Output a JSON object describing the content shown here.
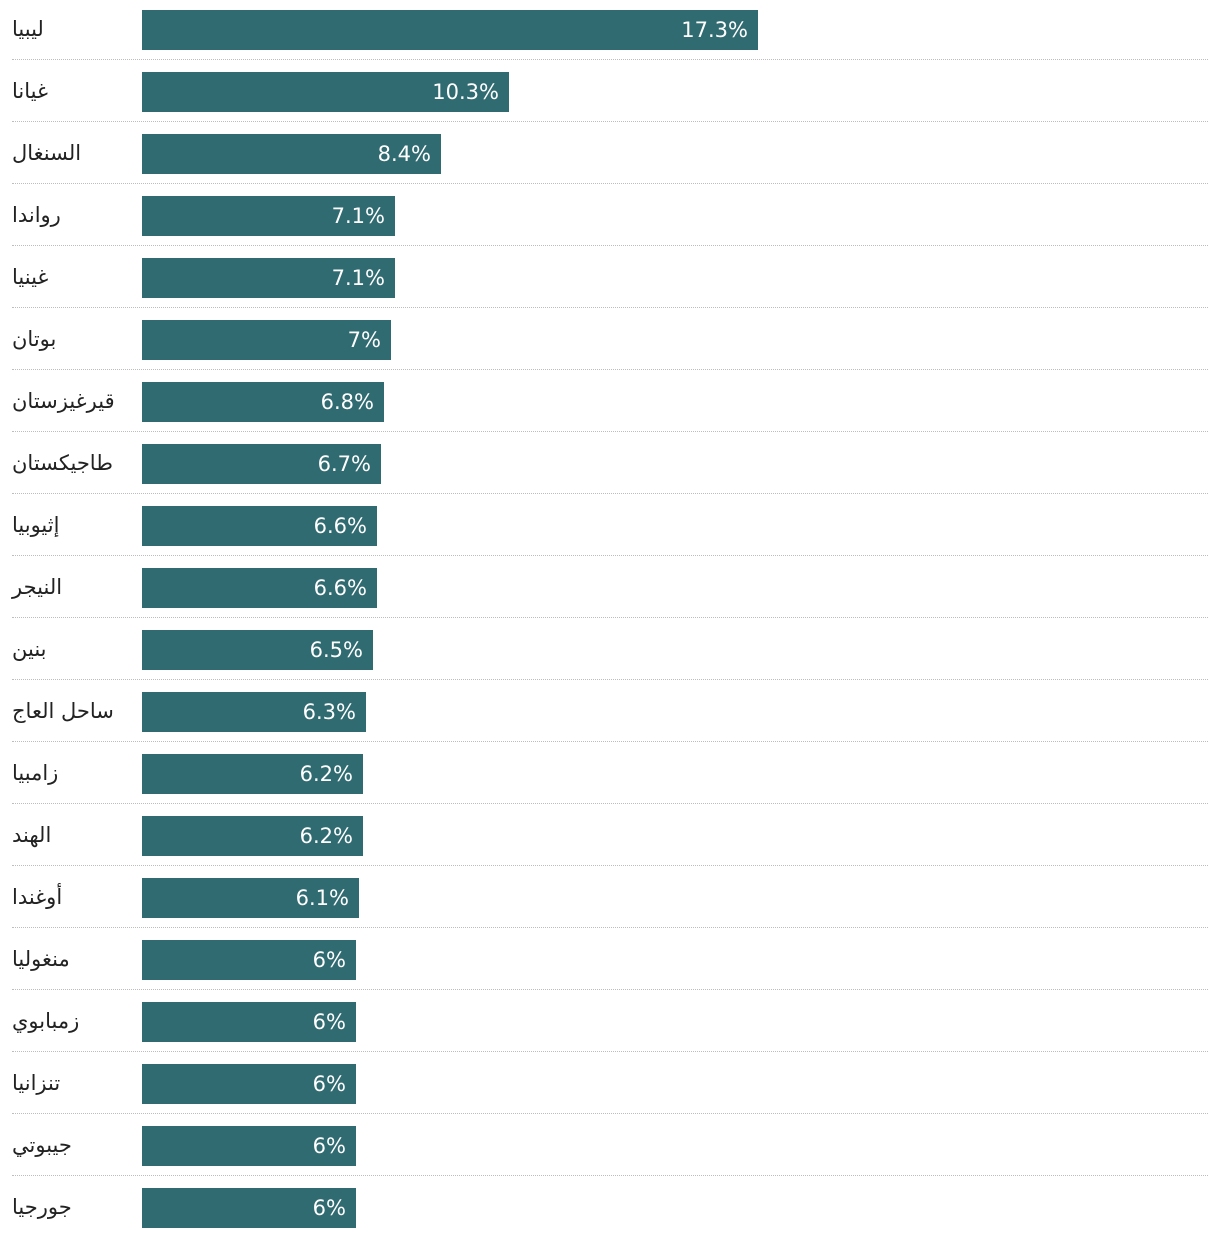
{
  "chart_data": {
    "type": "bar",
    "orientation": "horizontal",
    "categories": [
      "ليبيا",
      "غيانا",
      "السنغال",
      "رواندا",
      "غينيا",
      "بوتان",
      "قيرغيزستان",
      "طاجيكستان",
      "إثيوبيا",
      "النيجر",
      "بنين",
      "ساحل العاج",
      "زامبيا",
      "الهند",
      "أوغندا",
      "منغوليا",
      "زمبابوي",
      "تنزانيا",
      "جيبوتي",
      "جورجيا"
    ],
    "values": [
      17.3,
      10.3,
      8.4,
      7.1,
      7.1,
      7.0,
      6.8,
      6.7,
      6.6,
      6.6,
      6.5,
      6.3,
      6.2,
      6.2,
      6.1,
      6.0,
      6.0,
      6.0,
      6.0,
      6.0
    ],
    "labels": [
      "17.3%",
      "10.3%",
      "8.4%",
      "7.1%",
      "7.1%",
      "7%",
      "6.8%",
      "6.7%",
      "6.6%",
      "6.6%",
      "6.5%",
      "6.3%",
      "6.2%",
      "6.2%",
      "6.1%",
      "6%",
      "6%",
      "6%",
      "6%",
      "6%"
    ],
    "unit": "%",
    "bar_color": "#306b72",
    "value_label_color": "#ffffff",
    "grid": false,
    "row_dividers": "dotted"
  }
}
